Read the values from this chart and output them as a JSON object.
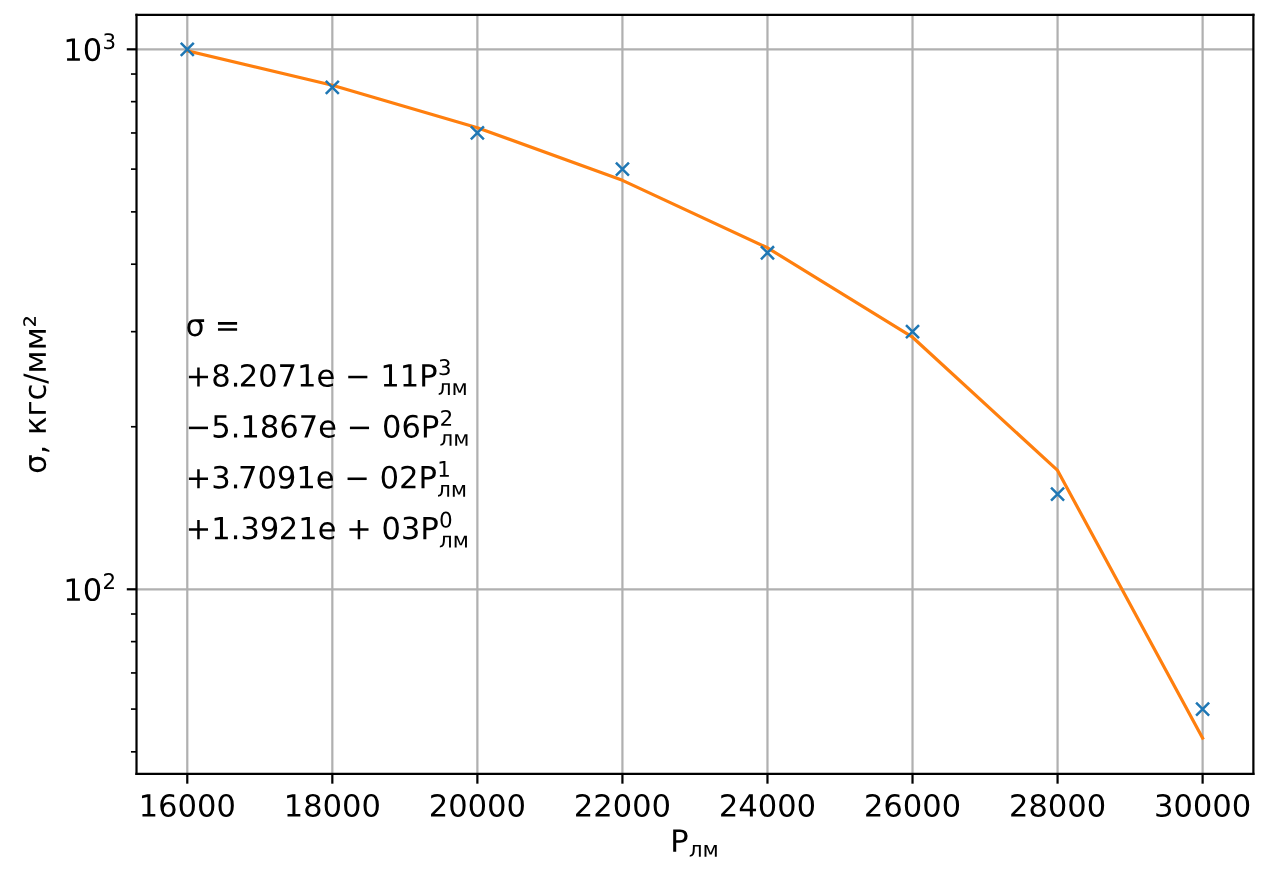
{
  "chart_data": {
    "type": "scatter",
    "x": [
      16000,
      18000,
      20000,
      22000,
      24000,
      26000,
      28000,
      30000
    ],
    "xlim": [
      15300,
      30700
    ],
    "xticks": [
      16000,
      18000,
      20000,
      22000,
      24000,
      26000,
      28000,
      30000
    ],
    "ylim": [
      45.5,
      1158
    ],
    "yticks": [
      {
        "value": 100,
        "label": "10$^{2}$"
      },
      {
        "value": 1000,
        "label": "10$^{3}$"
      }
    ],
    "log": "y",
    "grid": true,
    "xlabel": "P$_{лм}$",
    "ylabel": "σ, кгс/мм²",
    "annotations": [
      "σ =",
      "+8.2071e − 11P$^{3}$$_{лм}$",
      "−5.1867e − 06P$^{2}$$_{лм}$",
      "+3.7091e − 02P$^{1}$$_{лм}$",
      "+1.3921e + 03P$^{0}$$_{лм}$"
    ],
    "series": [
      {
        "color": "#1f77b4",
        "marker": "cross",
        "values": [
          1000,
          850,
          700,
          600,
          420,
          300,
          150,
          60
        ]
      },
      {
        "type": "line",
        "color": "#ff7f0e",
        "marker": "none",
        "line_style": "solid",
        "values": [
          994,
          858,
          716,
          572,
          429,
          293,
          166,
          53
        ]
      }
    ]
  }
}
